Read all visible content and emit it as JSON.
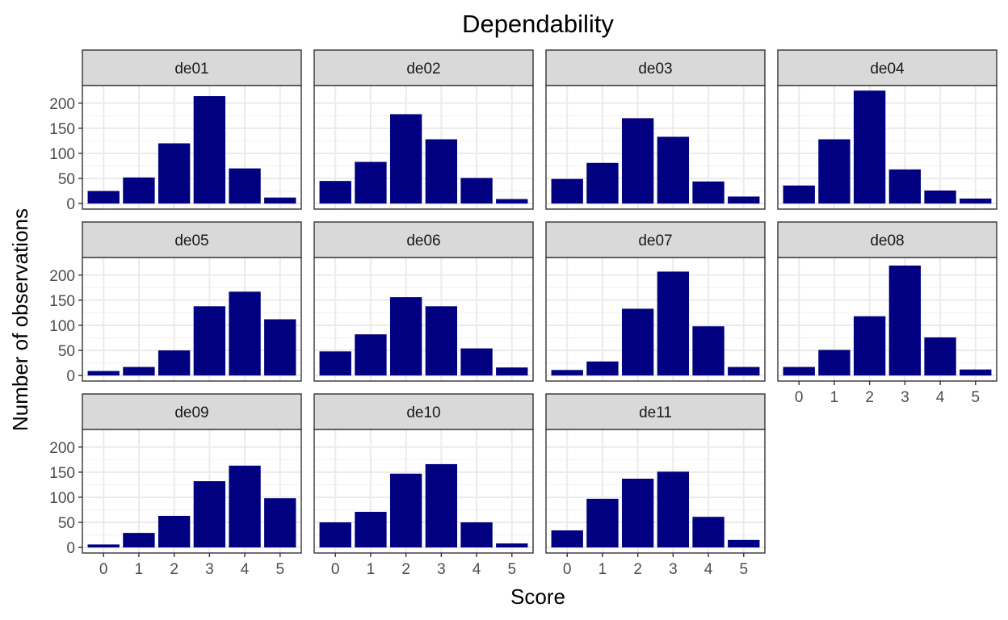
{
  "chart_data": {
    "type": "bar",
    "title": "Dependability",
    "xlabel": "Score",
    "ylabel": "Number of observations",
    "categories": [
      "0",
      "1",
      "2",
      "3",
      "4",
      "5"
    ],
    "yticks": [
      0,
      50,
      100,
      150,
      200
    ],
    "ylim": [
      -11,
      235
    ],
    "grid": true,
    "bar_color": "#000080",
    "strip_fill": "#d9d9d9",
    "panel_border": "#333333",
    "grid_major_color": "#ebebeb",
    "grid_minor_color": "#f2f2f2",
    "panels": [
      {
        "name": "de01",
        "values": [
          25,
          52,
          120,
          214,
          70,
          12
        ]
      },
      {
        "name": "de02",
        "values": [
          45,
          83,
          178,
          128,
          51,
          9
        ]
      },
      {
        "name": "de03",
        "values": [
          49,
          81,
          170,
          133,
          44,
          14
        ]
      },
      {
        "name": "de04",
        "values": [
          36,
          128,
          225,
          68,
          26,
          10
        ]
      },
      {
        "name": "de05",
        "values": [
          9,
          17,
          50,
          138,
          167,
          112
        ]
      },
      {
        "name": "de06",
        "values": [
          48,
          82,
          156,
          138,
          54,
          16
        ]
      },
      {
        "name": "de07",
        "values": [
          11,
          28,
          133,
          207,
          98,
          17
        ]
      },
      {
        "name": "de08",
        "values": [
          17,
          51,
          118,
          219,
          76,
          12
        ]
      },
      {
        "name": "de09",
        "values": [
          6,
          29,
          63,
          132,
          163,
          98
        ]
      },
      {
        "name": "de10",
        "values": [
          50,
          71,
          147,
          166,
          50,
          8
        ]
      },
      {
        "name": "de11",
        "values": [
          34,
          97,
          137,
          151,
          61,
          15
        ]
      }
    ]
  }
}
